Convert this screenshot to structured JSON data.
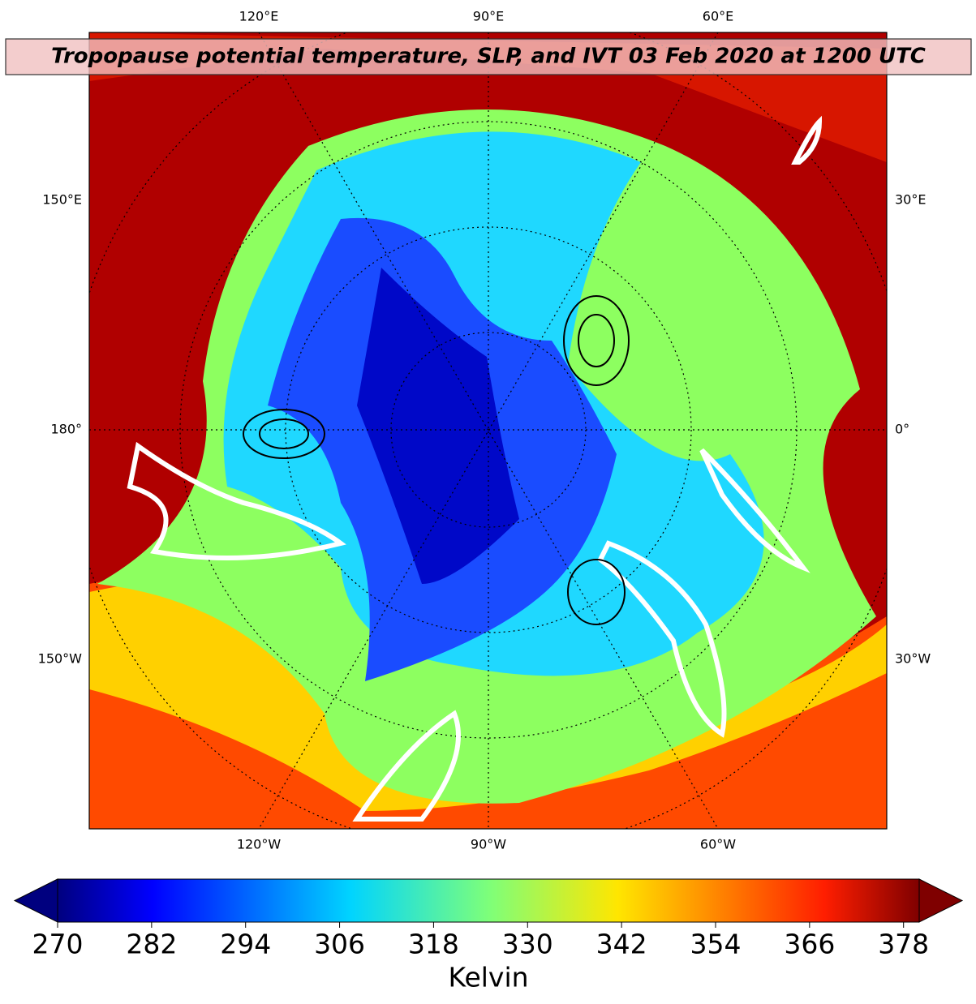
{
  "title": "Tropopause potential temperature, SLP, and IVT 03 Feb 2020 at 1200 UTC",
  "map": {
    "top_labels": [
      "120°E",
      "90°E",
      "60°E"
    ],
    "bottom_labels": [
      "120°W",
      "90°W",
      "60°W"
    ],
    "left_labels": [
      "150°E",
      "180°",
      "150°W"
    ],
    "right_labels": [
      "30°E",
      "0°",
      "30°W"
    ]
  },
  "colorbar": {
    "label": "Kelvin",
    "lim": [
      270,
      380
    ],
    "ticks": [
      270,
      282,
      294,
      306,
      318,
      330,
      342,
      354,
      366,
      378
    ]
  }
}
